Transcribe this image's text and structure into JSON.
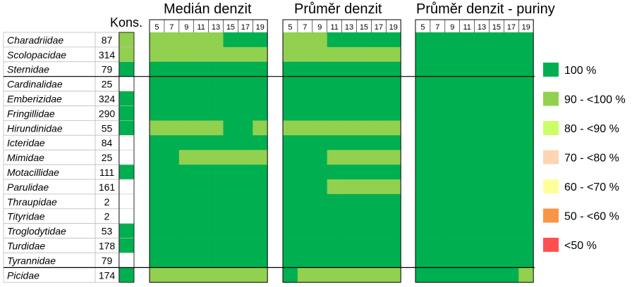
{
  "chart_data": {
    "type": "heatmap",
    "panels": [
      {
        "title": "Medián denzit"
      },
      {
        "title": "Průměr denzit"
      },
      {
        "title": "Průměr denzit - puriny"
      }
    ],
    "columns": [
      "5",
      "7",
      "9",
      "11",
      "13",
      "15",
      "17",
      "19"
    ],
    "kons_label": "Kons.",
    "families": [
      {
        "name": "Charadriidae",
        "n": "87",
        "kons": "90 - <100 %",
        "panels": [
          [
            "g",
            "g",
            "g",
            "g",
            "g",
            "d",
            "d",
            "d"
          ],
          [
            "g",
            "g",
            "g",
            "d",
            "d",
            "d",
            "d",
            "d"
          ],
          [
            "d",
            "d",
            "d",
            "d",
            "d",
            "d",
            "d",
            "d"
          ]
        ]
      },
      {
        "name": "Scolopacidae",
        "n": "314",
        "kons": "90 - <100 %",
        "panels": [
          [
            "g",
            "g",
            "g",
            "g",
            "g",
            "g",
            "g",
            "g"
          ],
          [
            "g",
            "g",
            "g",
            "g",
            "g",
            "g",
            "g",
            "g"
          ],
          [
            "d",
            "d",
            "d",
            "d",
            "d",
            "d",
            "d",
            "d"
          ]
        ]
      },
      {
        "name": "Sternidae",
        "n": "79",
        "kons": "100 %",
        "panels": [
          [
            "d",
            "d",
            "d",
            "d",
            "d",
            "d",
            "d",
            "d"
          ],
          [
            "d",
            "d",
            "d",
            "d",
            "d",
            "d",
            "d",
            "d"
          ],
          [
            "d",
            "d",
            "d",
            "d",
            "d",
            "d",
            "d",
            "d"
          ]
        ]
      },
      {
        "name": "Cardinalidae",
        "n": "25",
        "kons": "",
        "panels": [
          [
            "d",
            "d",
            "d",
            "d",
            "d",
            "d",
            "d",
            "d"
          ],
          [
            "d",
            "d",
            "d",
            "d",
            "d",
            "d",
            "d",
            "d"
          ],
          [
            "d",
            "d",
            "d",
            "d",
            "d",
            "d",
            "d",
            "d"
          ]
        ]
      },
      {
        "name": "Emberizidae",
        "n": "324",
        "kons": "100 %",
        "panels": [
          [
            "d",
            "d",
            "d",
            "d",
            "d",
            "d",
            "d",
            "d"
          ],
          [
            "d",
            "d",
            "d",
            "d",
            "d",
            "d",
            "d",
            "d"
          ],
          [
            "d",
            "d",
            "d",
            "d",
            "d",
            "d",
            "d",
            "d"
          ]
        ]
      },
      {
        "name": "Fringillidae",
        "n": "290",
        "kons": "100 %",
        "panels": [
          [
            "d",
            "d",
            "d",
            "d",
            "d",
            "d",
            "d",
            "d"
          ],
          [
            "d",
            "d",
            "d",
            "d",
            "d",
            "d",
            "d",
            "d"
          ],
          [
            "d",
            "d",
            "d",
            "d",
            "d",
            "d",
            "d",
            "d"
          ]
        ]
      },
      {
        "name": "Hirundinidae",
        "n": "55",
        "kons": "100 %",
        "panels": [
          [
            "g",
            "g",
            "g",
            "g",
            "g",
            "d",
            "d",
            "g"
          ],
          [
            "g",
            "g",
            "g",
            "g",
            "g",
            "g",
            "g",
            "g"
          ],
          [
            "d",
            "d",
            "d",
            "d",
            "d",
            "d",
            "d",
            "d"
          ]
        ]
      },
      {
        "name": "Icteridae",
        "n": "84",
        "kons": "",
        "panels": [
          [
            "d",
            "d",
            "d",
            "d",
            "d",
            "d",
            "d",
            "d"
          ],
          [
            "d",
            "d",
            "d",
            "d",
            "d",
            "d",
            "d",
            "d"
          ],
          [
            "d",
            "d",
            "d",
            "d",
            "d",
            "d",
            "d",
            "d"
          ]
        ]
      },
      {
        "name": "Mimidae",
        "n": "25",
        "kons": "",
        "panels": [
          [
            "d",
            "d",
            "g",
            "g",
            "g",
            "g",
            "g",
            "g"
          ],
          [
            "d",
            "d",
            "d",
            "g",
            "g",
            "g",
            "g",
            "g"
          ],
          [
            "d",
            "d",
            "d",
            "d",
            "d",
            "d",
            "d",
            "d"
          ]
        ]
      },
      {
        "name": "Motacillidae",
        "n": "111",
        "kons": "100 %",
        "panels": [
          [
            "d",
            "d",
            "d",
            "d",
            "d",
            "d",
            "d",
            "d"
          ],
          [
            "d",
            "d",
            "d",
            "d",
            "d",
            "d",
            "d",
            "d"
          ],
          [
            "d",
            "d",
            "d",
            "d",
            "d",
            "d",
            "d",
            "d"
          ]
        ]
      },
      {
        "name": "Parulidae",
        "n": "161",
        "kons": "",
        "panels": [
          [
            "d",
            "d",
            "d",
            "d",
            "d",
            "d",
            "d",
            "d"
          ],
          [
            "d",
            "d",
            "d",
            "g",
            "g",
            "g",
            "g",
            "g"
          ],
          [
            "d",
            "d",
            "d",
            "d",
            "d",
            "d",
            "d",
            "d"
          ]
        ]
      },
      {
        "name": "Thraupidae",
        "n": "2",
        "kons": "",
        "panels": [
          [
            "d",
            "d",
            "d",
            "d",
            "d",
            "d",
            "d",
            "d"
          ],
          [
            "d",
            "d",
            "d",
            "d",
            "d",
            "d",
            "d",
            "d"
          ],
          [
            "d",
            "d",
            "d",
            "d",
            "d",
            "d",
            "d",
            "d"
          ]
        ]
      },
      {
        "name": "Tityridae",
        "n": "2",
        "kons": "",
        "panels": [
          [
            "d",
            "d",
            "d",
            "d",
            "d",
            "d",
            "d",
            "d"
          ],
          [
            "d",
            "d",
            "d",
            "d",
            "d",
            "d",
            "d",
            "d"
          ],
          [
            "d",
            "d",
            "d",
            "d",
            "d",
            "d",
            "d",
            "d"
          ]
        ]
      },
      {
        "name": "Troglodytidae",
        "n": "53",
        "kons": "100 %",
        "panels": [
          [
            "d",
            "d",
            "d",
            "d",
            "d",
            "d",
            "d",
            "d"
          ],
          [
            "d",
            "d",
            "d",
            "d",
            "d",
            "d",
            "d",
            "d"
          ],
          [
            "d",
            "d",
            "d",
            "d",
            "d",
            "d",
            "d",
            "d"
          ]
        ]
      },
      {
        "name": "Turdidae",
        "n": "178",
        "kons": "100 %",
        "panels": [
          [
            "d",
            "d",
            "d",
            "d",
            "d",
            "d",
            "d",
            "d"
          ],
          [
            "d",
            "d",
            "d",
            "d",
            "d",
            "d",
            "d",
            "d"
          ],
          [
            "d",
            "d",
            "d",
            "d",
            "d",
            "d",
            "d",
            "d"
          ]
        ]
      },
      {
        "name": "Tyrannidae",
        "n": "79",
        "kons": "",
        "panels": [
          [
            "d",
            "d",
            "d",
            "d",
            "d",
            "d",
            "d",
            "d"
          ],
          [
            "d",
            "d",
            "d",
            "d",
            "d",
            "d",
            "d",
            "d"
          ],
          [
            "d",
            "d",
            "d",
            "d",
            "d",
            "d",
            "d",
            "d"
          ]
        ]
      },
      {
        "name": "Picidae",
        "n": "174",
        "kons": "100 %",
        "panels": [
          [
            "g",
            "g",
            "g",
            "g",
            "g",
            "g",
            "g",
            "g"
          ],
          [
            "d",
            "g",
            "g",
            "g",
            "g",
            "g",
            "g",
            "g"
          ],
          [
            "d",
            "d",
            "d",
            "d",
            "d",
            "d",
            "d",
            "g"
          ]
        ]
      }
    ],
    "legend": [
      {
        "label": "100 %",
        "color": "#00b050"
      },
      {
        "label": "90 - <100 %",
        "color": "#92d050"
      },
      {
        "label": "80 - <90 %",
        "color": "#ccff66"
      },
      {
        "label": "70 - <80 %",
        "color": "#fcd5b4"
      },
      {
        "label": "60 - <70 %",
        "color": "#ffff99"
      },
      {
        "label": "50 - <60 %",
        "color": "#f79646"
      },
      {
        "label": "<50 %",
        "color": "#ff5050"
      }
    ],
    "cell_codes": {
      "d": "100 %",
      "g": "90 - <100 %"
    }
  }
}
